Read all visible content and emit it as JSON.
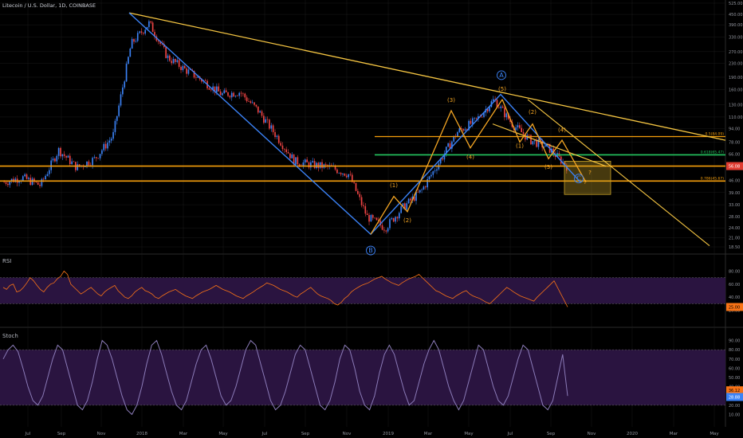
{
  "title": "Litecoin / U.S. Dollar, 1D, COINBASE",
  "panes": {
    "rsi": "RSI",
    "stoch": "Stoch"
  },
  "colors": {
    "background": "#000000",
    "candle_up": "#3b82f6",
    "candle_down": "#ef4444",
    "trend_yellow": "#f5c542",
    "wave_blue": "#3b82f6",
    "wave_orange": "#f5a623",
    "horizontal_orange": "#f59e0b",
    "fib_green": "#22c55e",
    "rsi_line": "#f97316",
    "stoch_line": "#8b7bb8",
    "rsi_band_fill": "#2a1440",
    "stoch_band_fill": "#2a1440",
    "grid": "#1a1a1a",
    "axis_text": "#9598a1",
    "last_price_bg": "#e03c31",
    "target_box": "#c9a227"
  },
  "chart_data": [
    {
      "type": "candlestick",
      "title": "Litecoin / U.S. Dollar, 1D, COINBASE",
      "y_scale": "log",
      "y_ticks": [
        "525.00",
        "450.00",
        "390.00",
        "330.00",
        "270.00",
        "230.00",
        "190.00",
        "160.00",
        "130.00",
        "110.00",
        "94.00",
        "78.00",
        "66.00",
        "56.00",
        "46.00",
        "39.00",
        "33.00",
        "28.00",
        "24.00",
        "21.00",
        "18.50"
      ],
      "x_ticks": [
        "Jul",
        "Sep",
        "Nov",
        "2018",
        "Mar",
        "May",
        "Jul",
        "Sep",
        "Nov",
        "2019",
        "Mar",
        "May",
        "Jul",
        "Sep",
        "Nov",
        "2020",
        "Mar",
        "May"
      ],
      "last_price": "56.08",
      "price_path": [
        [
          "Jun",
          45
        ],
        [
          "Jul",
          48
        ],
        [
          "Aug",
          43
        ],
        [
          "Sep",
          70
        ],
        [
          "Oct",
          55
        ],
        [
          "Nov",
          62
        ],
        [
          "Nov",
          85
        ],
        [
          "Dec",
          300
        ],
        [
          "Dec",
          400
        ],
        [
          "2018",
          250
        ],
        [
          "Feb",
          210
        ],
        [
          "Mar",
          180
        ],
        [
          "Apr",
          150
        ],
        [
          "May",
          155
        ],
        [
          "Jun",
          120
        ],
        [
          "Jul",
          85
        ],
        [
          "Aug",
          60
        ],
        [
          "Sep",
          57
        ],
        [
          "Oct",
          55
        ],
        [
          "Nov",
          50
        ],
        [
          "Dec",
          28
        ],
        [
          "Dec",
          24
        ],
        [
          "2019",
          32
        ],
        [
          "Feb",
          40
        ],
        [
          "Mar",
          60
        ],
        [
          "Apr",
          90
        ],
        [
          "May",
          105
        ],
        [
          "Jun",
          140
        ],
        [
          "Jul",
          100
        ],
        [
          "Aug",
          80
        ],
        [
          "Sep",
          72
        ],
        [
          "Sep",
          56
        ]
      ],
      "annotations": {
        "fib_labels": [
          "0.5(84.09)",
          "0.618(65.47)",
          "0.786(45.67)"
        ],
        "wave_labels": [
          "A",
          "B",
          "C",
          "(1)",
          "(2)",
          "(3)",
          "(4)",
          "(5)",
          "(1)",
          "(2)",
          "(3)",
          "(4)",
          "?",
          "?"
        ]
      }
    },
    {
      "type": "line",
      "name": "RSI",
      "y_ticks": [
        "80.00",
        "60.00",
        "40.00",
        "20.00"
      ],
      "last_value": "25.00",
      "band": [
        30,
        70
      ],
      "values": [
        55,
        52,
        58,
        60,
        48,
        50,
        55,
        62,
        70,
        65,
        58,
        52,
        48,
        55,
        60,
        62,
        68,
        72,
        80,
        75,
        60,
        55,
        50,
        45,
        48,
        52,
        55,
        50,
        45,
        42,
        48,
        52,
        55,
        58,
        50,
        45,
        40,
        38,
        42,
        48,
        52,
        55,
        50,
        48,
        45,
        40,
        38,
        42,
        45,
        48,
        50,
        52,
        48,
        45,
        42,
        40,
        38,
        42,
        45,
        48,
        50,
        52,
        55,
        58,
        55,
        52,
        50,
        48,
        45,
        42,
        40,
        38,
        42,
        45,
        48,
        52,
        55,
        58,
        62,
        60,
        58,
        55,
        52,
        50,
        48,
        45,
        42,
        40,
        45,
        48,
        52,
        55,
        50,
        45,
        42,
        40,
        38,
        35,
        30,
        28,
        32,
        38,
        42,
        48,
        52,
        55,
        58,
        60,
        62,
        65,
        68,
        70,
        72,
        68,
        65,
        62,
        60,
        58,
        62,
        65,
        68,
        70,
        72,
        75,
        70,
        65,
        60,
        55,
        50,
        48,
        45,
        42,
        40,
        38,
        42,
        45,
        48,
        50,
        45,
        42,
        40,
        38,
        35,
        32,
        30,
        35,
        40,
        45,
        50,
        55,
        52,
        48,
        45,
        42,
        40,
        38,
        36,
        34,
        40,
        45,
        50,
        55,
        60,
        65,
        55,
        45,
        35,
        25
      ]
    },
    {
      "type": "line",
      "name": "Stoch",
      "y_ticks": [
        "90.00",
        "80.00",
        "70.00",
        "60.00",
        "50.00",
        "40.00",
        "30.00",
        "20.00",
        "10.00"
      ],
      "last_values": [
        "36.12",
        "28.88"
      ],
      "band": [
        20,
        80
      ],
      "values": [
        70,
        80,
        85,
        78,
        60,
        40,
        25,
        20,
        30,
        50,
        70,
        85,
        80,
        60,
        40,
        20,
        15,
        25,
        45,
        70,
        90,
        85,
        70,
        50,
        30,
        15,
        10,
        20,
        40,
        65,
        85,
        90,
        75,
        55,
        35,
        20,
        15,
        25,
        45,
        65,
        80,
        85,
        70,
        50,
        30,
        20,
        25,
        40,
        60,
        80,
        90,
        85,
        65,
        45,
        25,
        15,
        20,
        35,
        55,
        75,
        85,
        80,
        60,
        40,
        20,
        15,
        25,
        45,
        70,
        85,
        80,
        60,
        35,
        20,
        15,
        30,
        55,
        75,
        85,
        75,
        55,
        35,
        20,
        25,
        45,
        65,
        80,
        90,
        80,
        60,
        40,
        25,
        15,
        25,
        45,
        65,
        85,
        80,
        60,
        40,
        25,
        20,
        30,
        50,
        70,
        85,
        80,
        60,
        40,
        20,
        15,
        25,
        50,
        75,
        30
      ]
    }
  ]
}
